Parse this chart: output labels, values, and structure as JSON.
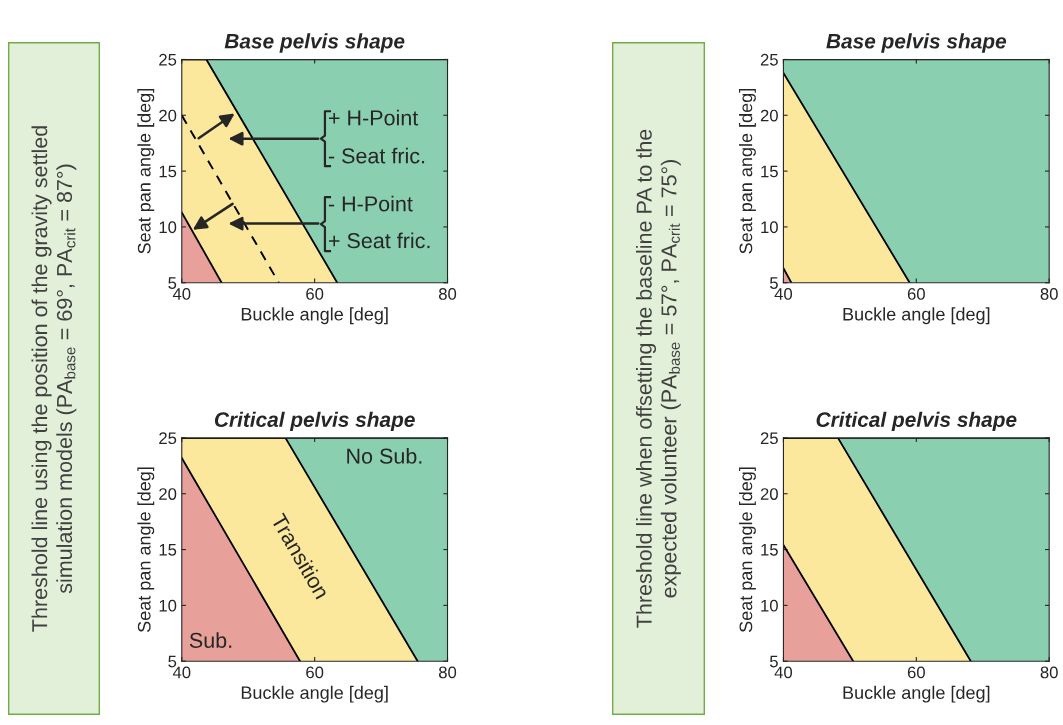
{
  "chart_data": [
    {
      "type": "other",
      "annotations": [
        "Threshold line using the position of the gravity settled\nsimulation models (PA$_{base}$ = 69°, PA$_{crit}$ = 87°)"
      ]
    },
    {
      "type": "area",
      "title": "Base pelvis shape",
      "xlabel": "Buckle angle [deg]",
      "ylabel": "Seat pan angle [deg]",
      "xlim": [
        40,
        80
      ],
      "ylim": [
        5,
        25
      ],
      "xticks": [
        40,
        60,
        80
      ],
      "yticks": [
        5,
        10,
        15,
        20,
        25
      ],
      "grid": false,
      "series": [
        {
          "color": "#e8a09a",
          "x": [
            40,
            46
          ],
          "values": [
            11.3,
            5
          ]
        },
        {
          "color": "#fbe89c",
          "x": [
            40,
            43.7,
            63.4
          ],
          "values": [
            25,
            25,
            5
          ]
        },
        {
          "color": "#8acfb0",
          "x": [
            40,
            80
          ],
          "values": [
            25,
            25
          ]
        },
        {
          "type": "line",
          "color": "#000000",
          "line_style": "dashed",
          "x": [
            40,
            54.6
          ],
          "values": [
            20,
            5
          ]
        }
      ],
      "annotations": [
        "+ H-Point",
        "- Seat fric.",
        "- H-Point",
        "+ Seat fric."
      ]
    },
    {
      "type": "other",
      "annotations": [
        "Threshold line when offsetting the baseline PA to the\nexpected volunteer (PA$_{base}$ = 57°, PA$_{crit}$ = 75°)"
      ]
    },
    {
      "type": "area",
      "title": "Base pelvis shape",
      "xlabel": "Buckle angle [deg]",
      "ylabel": "Seat pan angle [deg]",
      "xlim": [
        40,
        80
      ],
      "ylim": [
        5,
        25
      ],
      "xticks": [
        40,
        60,
        80
      ],
      "yticks": [
        5,
        10,
        15,
        20,
        25
      ],
      "grid": false,
      "series": [
        {
          "color": "#e8a09a",
          "x": [
            40,
            41.2
          ],
          "values": [
            6.3,
            5
          ]
        },
        {
          "color": "#fbe89c",
          "x": [
            40,
            59
          ],
          "values": [
            23.8,
            5
          ]
        },
        {
          "color": "#8acfb0",
          "x": [
            40,
            80
          ],
          "values": [
            25,
            25
          ]
        }
      ]
    },
    {
      "type": "area",
      "title": "Critical pelvis shape",
      "xlabel": "Buckle angle [deg]",
      "ylabel": "Seat pan angle [deg]",
      "xlim": [
        40,
        80
      ],
      "ylim": [
        5,
        25
      ],
      "xticks": [
        40,
        60,
        80
      ],
      "yticks": [
        5,
        10,
        15,
        20,
        25
      ],
      "grid": false,
      "series": [
        {
          "color": "#e8a09a",
          "x": [
            40,
            57.8
          ],
          "values": [
            23.2,
            5
          ]
        },
        {
          "color": "#fbe89c",
          "x": [
            40,
            55.6,
            75.5
          ],
          "values": [
            25,
            25,
            5
          ]
        },
        {
          "color": "#8acfb0",
          "x": [
            40,
            80
          ],
          "values": [
            25,
            25
          ]
        }
      ],
      "annotations": [
        "No Sub.",
        "Transition",
        "Sub."
      ]
    },
    {
      "type": "area",
      "title": "Critical pelvis shape",
      "xlabel": "Buckle angle [deg]",
      "ylabel": "Seat pan angle [deg]",
      "xlim": [
        40,
        80
      ],
      "ylim": [
        5,
        25
      ],
      "xticks": [
        40,
        60,
        80
      ],
      "yticks": [
        5,
        10,
        15,
        20,
        25
      ],
      "grid": false,
      "series": [
        {
          "color": "#e8a09a",
          "x": [
            40,
            50.5
          ],
          "values": [
            15.4,
            5
          ]
        },
        {
          "color": "#fbe89c",
          "x": [
            40,
            48.2,
            68.2
          ],
          "values": [
            25,
            25,
            5
          ]
        },
        {
          "color": "#8acfb0",
          "x": [
            40,
            80
          ],
          "values": [
            25,
            25
          ]
        }
      ]
    }
  ]
}
